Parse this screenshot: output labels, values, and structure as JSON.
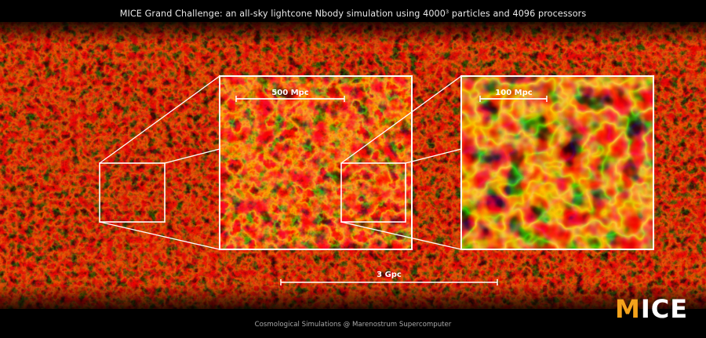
{
  "title": {
    "text_before_sup": "MICE Grand Challenge: an all-sky lightcone Nbody simulation using 4000",
    "sup": "3",
    "text_after_sup": " particles and 4096 processors"
  },
  "scale_bars": {
    "large_inset": "500 Mpc",
    "small_inset": "100 Mpc",
    "full_sky": "3 Gpc"
  },
  "caption": "Cosmological Simulations @ Marenostrum Supercomputer",
  "logo": {
    "first_letter": "M",
    "rest": "ICE"
  },
  "colors": {
    "background": "#000000",
    "filament_dark": "#3a0400",
    "filament_mid": "#c21a04",
    "filament_bright": "#ffd23c",
    "frame": "#ffffff",
    "logo_accent": "#f4a21b"
  }
}
